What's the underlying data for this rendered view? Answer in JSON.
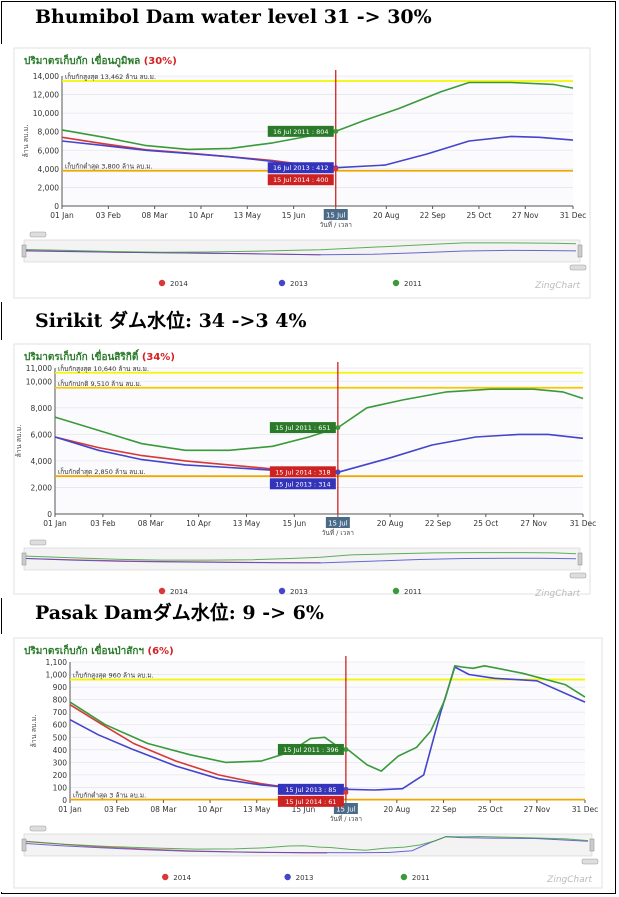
{
  "sections": [
    {
      "heading": "Bhumibol Dam water level 31 -> 30%",
      "chart_data": {
        "type": "line",
        "title": "ปริมาตรเก็บกัก เขื่อนภูมิพล",
        "title_pct": "(30%)",
        "ylabel": "ล้าน ลบ.ม.",
        "xlabel": "วันที่ / เวลา",
        "ylim": [
          0,
          14000
        ],
        "yticks": [
          0,
          2000,
          4000,
          6000,
          8000,
          10000,
          12000,
          14000
        ],
        "ytick_labels": [
          "0",
          "2,000",
          "4,000",
          "6,000",
          "8,000",
          "10,000",
          "12,000",
          "14,000"
        ],
        "x_tick_labels": [
          "01 Jan",
          "03 Feb",
          "08 Mar",
          "10 Apr",
          "13 May",
          "15 Jun",
          "15 Jul",
          "20 Aug",
          "22 Sep",
          "25 Oct",
          "27 Nov",
          "31 Dec"
        ],
        "x_tick_days": [
          0,
          33,
          66,
          99,
          132,
          165,
          195,
          231,
          264,
          297,
          330,
          364
        ],
        "cursor_day": 195,
        "cursor_label": "15 Jul",
        "ref_lines": [
          {
            "value": 13462,
            "label": "เก็บกักสูงสุด 13,462 ล้าน ลบ.ม.",
            "color": "#f5f500"
          },
          {
            "value": 3800,
            "label": "เก็บกักต่ำสุด 3,800 ล้าน ลบ.ม.",
            "color": "#f0a800"
          }
        ],
        "series": [
          {
            "name": "2014",
            "color": "#d83838",
            "x": [
              0,
              30,
              60,
              90,
              120,
              150,
              170,
              195
            ],
            "y": [
              7400,
              6700,
              6050,
              5700,
              5300,
              4900,
              4500,
              4000
            ]
          },
          {
            "name": "2013",
            "color": "#4444cc",
            "x": [
              0,
              30,
              60,
              90,
              120,
              150,
              170,
              195,
              230,
              260,
              290,
              320,
              340,
              364
            ],
            "y": [
              7000,
              6500,
              6000,
              5650,
              5300,
              4800,
              4400,
              4120,
              4400,
              5600,
              7000,
              7500,
              7400,
              7100
            ]
          },
          {
            "name": "2011",
            "color": "#3a9a3a",
            "x": [
              0,
              30,
              60,
              90,
              120,
              150,
              175,
              195,
              215,
              240,
              270,
              290,
              320,
              350,
              364
            ],
            "y": [
              8200,
              7400,
              6500,
              6100,
              6200,
              6800,
              7500,
              8040,
              9200,
              10500,
              12300,
              13300,
              13300,
              13100,
              12700
            ]
          }
        ],
        "tooltips": [
          {
            "text": "16 Jul 2011 : 804",
            "series": 2,
            "color": "#2a7a2a"
          },
          {
            "text": "16 Jul 2013 : 412",
            "series": 1,
            "color": "#3333bb"
          },
          {
            "text": "15 Jul 2014 : 400",
            "series": 0,
            "color": "#cc2222"
          }
        ],
        "legend": [
          "2014",
          "2013",
          "2011"
        ],
        "brand": "ZingChart"
      }
    },
    {
      "heading": "Sirikit ダム水位: 34 ->3 4%",
      "chart_data": {
        "type": "line",
        "title": "ปริมาตรเก็บกัก เขื่อนสิริกิติ์",
        "title_pct": "(34%)",
        "ylabel": "ล้าน ลบ.ม.",
        "xlabel": "วันที่ / เวลา",
        "ylim": [
          0,
          11000
        ],
        "yticks": [
          0,
          2000,
          4000,
          6000,
          8000,
          10000,
          11000
        ],
        "ytick_labels": [
          "0",
          "2,000",
          "4,000",
          "6,000",
          "8,000",
          "10,000",
          "11,000"
        ],
        "x_tick_labels": [
          "01 Jan",
          "03 Feb",
          "08 Mar",
          "10 Apr",
          "13 May",
          "15 Jun",
          "15 Jul",
          "20 Aug",
          "22 Sep",
          "25 Oct",
          "27 Nov",
          "31 Dec"
        ],
        "x_tick_days": [
          0,
          33,
          66,
          99,
          132,
          165,
          195,
          231,
          264,
          297,
          330,
          364
        ],
        "cursor_day": 195,
        "cursor_label": "15 Jul",
        "ref_lines": [
          {
            "value": 10640,
            "label": "เก็บกักสูงสุด 10,640 ล้าน ลบ.ม.",
            "color": "#f5f500"
          },
          {
            "value": 9510,
            "label": "เก็บกักปกติ 9,510 ล้าน ลบ.ม.",
            "color": "#f5c800"
          },
          {
            "value": 2850,
            "label": "เก็บกักต่ำสุด 2,850 ล้าน ลบ.ม.",
            "color": "#f0a800"
          }
        ],
        "series": [
          {
            "name": "2014",
            "color": "#d83838",
            "x": [
              0,
              30,
              60,
              90,
              120,
              150,
              170,
              195
            ],
            "y": [
              5800,
              5000,
              4400,
              4000,
              3700,
              3400,
              3250,
              3180
            ]
          },
          {
            "name": "2013",
            "color": "#4444cc",
            "x": [
              0,
              30,
              60,
              90,
              120,
              150,
              170,
              195,
              230,
              260,
              290,
              320,
              340,
              364
            ],
            "y": [
              5800,
              4800,
              4100,
              3700,
              3500,
              3300,
              3200,
              3140,
              4200,
              5200,
              5800,
              6000,
              6000,
              5700
            ]
          },
          {
            "name": "2011",
            "color": "#3a9a3a",
            "x": [
              0,
              30,
              60,
              90,
              120,
              150,
              175,
              195,
              215,
              240,
              270,
              300,
              330,
              350,
              364
            ],
            "y": [
              7300,
              6300,
              5300,
              4800,
              4800,
              5100,
              5800,
              6510,
              8000,
              8600,
              9200,
              9400,
              9400,
              9200,
              8700
            ]
          }
        ],
        "tooltips": [
          {
            "text": "15 Jul 2011 : 651",
            "series": 2,
            "color": "#2a7a2a"
          },
          {
            "text": "15 Jul 2014 : 318",
            "series": 0,
            "color": "#cc2222"
          },
          {
            "text": "15 Jul 2013 : 314",
            "series": 1,
            "color": "#3333bb"
          }
        ],
        "legend": [
          "2014",
          "2013",
          "2011"
        ],
        "brand": "ZingChart"
      }
    },
    {
      "heading": "Pasak Damダム水位: 9 -> 6%",
      "chart_data": {
        "type": "line",
        "title": "ปริมาตรเก็บกัก เขื่อนป่าสักฯ",
        "title_pct": "(6%)",
        "ylabel": "ล้าน ลบ.ม.",
        "xlabel": "วันที่ / เวลา",
        "ylim": [
          0,
          1100
        ],
        "yticks": [
          0,
          100,
          200,
          300,
          400,
          500,
          600,
          700,
          800,
          900,
          1000,
          1100
        ],
        "ytick_labels": [
          "0",
          "100",
          "200",
          "300",
          "400",
          "500",
          "600",
          "700",
          "800",
          "900",
          "1,000",
          "1,100"
        ],
        "x_tick_labels": [
          "01 Jan",
          "03 Feb",
          "08 Mar",
          "10 Apr",
          "13 May",
          "15 Jun",
          "15 Jul",
          "20 Aug",
          "22 Sep",
          "25 Oct",
          "27 Nov",
          "31 Dec"
        ],
        "x_tick_days": [
          0,
          33,
          66,
          99,
          132,
          165,
          195,
          231,
          264,
          297,
          330,
          364
        ],
        "cursor_day": 195,
        "cursor_label": "15 Jul",
        "ref_lines": [
          {
            "value": 960,
            "label": "เก็บกักสูงสุด 960 ล้าน ลบ.ม.",
            "color": "#f5f500"
          },
          {
            "value": 3,
            "label": "เก็บกักต่ำสุด 3 ล้าน ลบ.ม.",
            "color": "#f0a800"
          }
        ],
        "series": [
          {
            "name": "2014",
            "color": "#d83838",
            "x": [
              0,
              20,
              45,
              75,
              105,
              135,
              160,
              180,
              195
            ],
            "y": [
              760,
              620,
              450,
              310,
              200,
              130,
              90,
              70,
              61
            ]
          },
          {
            "name": "2013",
            "color": "#4444cc",
            "x": [
              0,
              20,
              45,
              75,
              105,
              135,
              160,
              180,
              195,
              215,
              235,
              250,
              262,
              272,
              282,
              300,
              330,
              364
            ],
            "y": [
              640,
              520,
              400,
              270,
              170,
              120,
              95,
              85,
              85,
              80,
              90,
              200,
              700,
              1060,
              1000,
              970,
              950,
              780
            ]
          },
          {
            "name": "2011",
            "color": "#3a9a3a",
            "x": [
              0,
              25,
              55,
              85,
              110,
              135,
              155,
              170,
              180,
              190,
              197,
              210,
              220,
              232,
              245,
              255,
              265,
              272,
              277,
              285,
              293,
              320,
              350,
              364
            ],
            "y": [
              780,
              600,
              450,
              360,
              300,
              310,
              380,
              490,
              500,
              420,
              396,
              280,
              230,
              350,
              420,
              550,
              800,
              1070,
              1060,
              1050,
              1070,
              1010,
              920,
              820
            ]
          }
        ],
        "tooltips": [
          {
            "text": "15 Jul 2011 : 396",
            "series": 2,
            "color": "#2a7a2a"
          },
          {
            "text": "15 Jul 2013 : 85",
            "series": 1,
            "color": "#3333bb"
          },
          {
            "text": "15 Jul 2014 : 61",
            "series": 0,
            "color": "#cc2222"
          }
        ],
        "legend": [
          "2014",
          "2013",
          "2011"
        ],
        "brand": "ZingChart"
      }
    }
  ]
}
